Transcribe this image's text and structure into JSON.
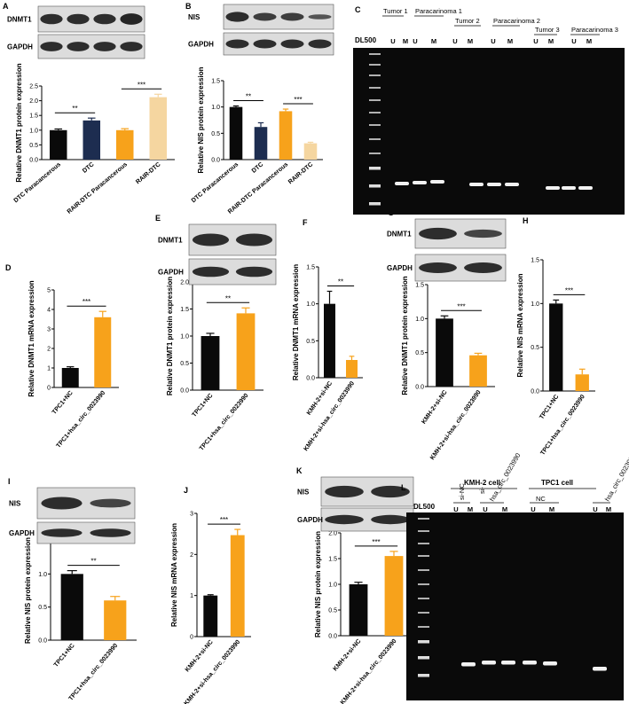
{
  "colors": {
    "black": "#0a0a0a",
    "navy": "#1d2d50",
    "orange": "#f7a21b",
    "tan": "#f5d6a0",
    "blot_bg": "#e8e8e8",
    "gel_bg": "#0a0a0a"
  },
  "blots": {
    "A": {
      "letter": "A",
      "labels": [
        "DNMT1",
        "GAPDH"
      ]
    },
    "B": {
      "letter": "B",
      "labels": [
        "NIS",
        "GAPDH"
      ]
    },
    "E": {
      "letter": "E",
      "labels": [
        "DNMT1",
        "GAPDH"
      ]
    },
    "G": {
      "letter": "G",
      "labels": [
        "DNMT1",
        "GAPDH"
      ]
    },
    "I": {
      "letter": "I",
      "labels": [
        "NIS",
        "GAPDH"
      ]
    },
    "K": {
      "letter": "K",
      "labels": [
        "NIS",
        "GAPDH"
      ]
    }
  },
  "gels": {
    "C": {
      "letter": "C",
      "marker": "DL500",
      "groups": [
        "Tumor 1",
        "Paracarinoma 1",
        "Tumor 2",
        "Paracarinoma 2",
        "Tumor 3",
        "Paracarinoma 3"
      ],
      "lane_letters": [
        "U",
        "M"
      ]
    },
    "L": {
      "letter": "L",
      "marker": "DL500",
      "cells": [
        "KMH-2 cell",
        "TPC1 cell"
      ],
      "groups": [
        "si-NC",
        "si-",
        "hsa_circ_0023990",
        "NC",
        "hsa_circ_0023990"
      ],
      "lane_letters": [
        "U",
        "M"
      ]
    }
  },
  "chart_data": [
    {
      "panel": "A",
      "type": "bar",
      "ylabel": "Relative DNMT1 protein expression",
      "categories": [
        "DTC Paracancerous",
        "DTC",
        "RAIR-DTC Paracancerous",
        "RAIR-DTC"
      ],
      "values": [
        1.0,
        1.33,
        1.0,
        2.12
      ],
      "errors": [
        0.04,
        0.08,
        0.05,
        0.1
      ],
      "yticks": [
        "0.0",
        "0.5",
        "1.0",
        "1.5",
        "2.0",
        "2.5"
      ],
      "ylim": [
        0,
        2.5
      ],
      "sig": [
        "**",
        "***"
      ]
    },
    {
      "panel": "B",
      "type": "bar",
      "ylabel": "Relative NIS protein expression",
      "categories": [
        "DTC Paracancerous",
        "DTC",
        "RAIR-DTC Paracancerous",
        "RAIR-DTC"
      ],
      "values": [
        1.0,
        0.62,
        0.92,
        0.31
      ],
      "errors": [
        0.02,
        0.08,
        0.04,
        0.02
      ],
      "yticks": [
        "0.0",
        "0.5",
        "1.0",
        "1.5"
      ],
      "ylim": [
        0,
        1.5
      ],
      "sig": [
        "**",
        "***"
      ]
    },
    {
      "panel": "D",
      "type": "bar",
      "ylabel": "Relative DNMT1 mRNA expression",
      "categories": [
        "TPC1+NC",
        "TPC1+hsa_circ_0023990"
      ],
      "values": [
        1.0,
        3.6
      ],
      "errors": [
        0.06,
        0.3
      ],
      "yticks": [
        "0",
        "1",
        "2",
        "3",
        "4",
        "5"
      ],
      "ylim": [
        0,
        5
      ],
      "sig": [
        "***"
      ]
    },
    {
      "panel": "E",
      "type": "bar",
      "ylabel": "Relative DNMT1 protein expression",
      "categories": [
        "TPC1+NC",
        "TPC1+hsa_circ_0023990"
      ],
      "values": [
        1.0,
        1.42
      ],
      "errors": [
        0.05,
        0.1
      ],
      "yticks": [
        "0.0",
        "0.5",
        "1.0",
        "1.5",
        "2.0"
      ],
      "ylim": [
        0,
        2.0
      ],
      "sig": [
        "**"
      ]
    },
    {
      "panel": "F",
      "type": "bar",
      "ylabel": "Relative DNMT1 mRNA expression",
      "categories": [
        "KMH-2+si-NC",
        "KMH-2+si-hsa_circ_0023990"
      ],
      "values": [
        1.0,
        0.24
      ],
      "errors": [
        0.17,
        0.05
      ],
      "yticks": [
        "0.0",
        "0.5",
        "1.0",
        "1.5"
      ],
      "ylim": [
        0,
        1.5
      ],
      "sig": [
        "**"
      ]
    },
    {
      "panel": "G",
      "type": "bar",
      "ylabel": "Relative DNMT1 protein expression",
      "categories": [
        "KMH-2+si-NC",
        "KMH-2+si-hsa_circ_0023990"
      ],
      "values": [
        1.0,
        0.46
      ],
      "errors": [
        0.04,
        0.03
      ],
      "yticks": [
        "0.0",
        "0.5",
        "1.0",
        "1.5"
      ],
      "ylim": [
        0,
        1.5
      ],
      "sig": [
        "***"
      ]
    },
    {
      "panel": "H",
      "type": "bar",
      "ylabel": "Relative NIS mRNA expression",
      "categories": [
        "TPC1+NC",
        "TPC1+hsa_circ_0023990"
      ],
      "values": [
        1.0,
        0.19
      ],
      "errors": [
        0.04,
        0.06
      ],
      "yticks": [
        "0.0",
        "0.5",
        "1.0",
        "1.5"
      ],
      "ylim": [
        0,
        1.5
      ],
      "sig": [
        "***"
      ]
    },
    {
      "panel": "I",
      "type": "bar",
      "ylabel": "Relative NIS protein expression",
      "categories": [
        "TPC1+NC",
        "TPC1+hsa_circ_0023990"
      ],
      "values": [
        1.0,
        0.6
      ],
      "errors": [
        0.05,
        0.06
      ],
      "yticks": [
        "0.0",
        "0.5",
        "1.0",
        "1.5"
      ],
      "ylim": [
        0,
        1.5
      ],
      "sig": [
        "**"
      ]
    },
    {
      "panel": "J",
      "type": "bar",
      "ylabel": "Relative NIS mRNA expression",
      "categories": [
        "KMH-2+si-NC",
        "KMH-2+si-hsa_circ_0023990"
      ],
      "values": [
        1.0,
        2.47
      ],
      "errors": [
        0.02,
        0.14
      ],
      "yticks": [
        "0",
        "1",
        "2",
        "3"
      ],
      "ylim": [
        0,
        3
      ],
      "sig": [
        "***"
      ]
    },
    {
      "panel": "K",
      "type": "bar",
      "ylabel": "Relative NIS protein expression",
      "categories": [
        "KMH-2+si-NC",
        "KMH-2+si-hsa_circ_0023990"
      ],
      "values": [
        1.0,
        1.55
      ],
      "errors": [
        0.04,
        0.09
      ],
      "yticks": [
        "0.0",
        "0.5",
        "1.0",
        "1.5",
        "2.0"
      ],
      "ylim": [
        0,
        2.0
      ],
      "sig": [
        "***"
      ]
    }
  ]
}
